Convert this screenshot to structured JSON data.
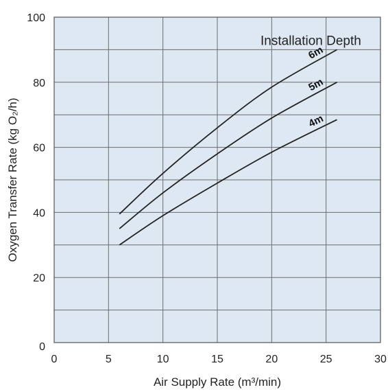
{
  "chart_data": {
    "type": "line",
    "title": "",
    "xlabel": "Air Supply Rate  (m³/min)",
    "ylabel": "Oxygen Transfer Rate (kg O₂/h)",
    "xlim": [
      0,
      30
    ],
    "ylim": [
      0,
      100
    ],
    "xticks": [
      "0",
      "5",
      "10",
      "15",
      "20",
      "25",
      "30"
    ],
    "yticks": [
      "0",
      "20",
      "40",
      "60",
      "80",
      "100"
    ],
    "grid": true,
    "legend_title": "Installation Depth",
    "background_color": "#dde8f2",
    "line_color": "#222222",
    "series": [
      {
        "name": "6m",
        "x": [
          6,
          10,
          15,
          20,
          26
        ],
        "y": [
          39.5,
          52,
          66,
          78.5,
          90
        ]
      },
      {
        "name": "5m",
        "x": [
          6,
          10,
          15,
          20,
          26
        ],
        "y": [
          35,
          46,
          58,
          69,
          80
        ]
      },
      {
        "name": "4m",
        "x": [
          6,
          10,
          15,
          20,
          26
        ],
        "y": [
          30,
          39,
          49,
          58.5,
          68.5
        ]
      }
    ]
  }
}
